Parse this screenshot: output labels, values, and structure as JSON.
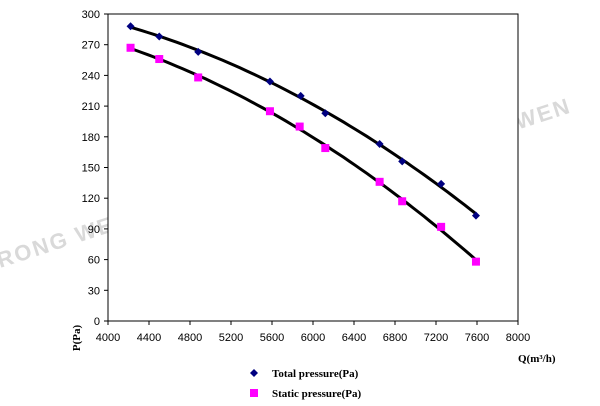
{
  "chart_data": {
    "type": "scatter",
    "title": "",
    "xlabel": "Q(m³/h)",
    "ylabel": "P(Pa)",
    "xlim": [
      4000,
      8000
    ],
    "ylim": [
      0,
      300
    ],
    "x_ticks": [
      4000,
      4400,
      4800,
      5200,
      5600,
      6000,
      6400,
      6800,
      7200,
      7600,
      8000
    ],
    "y_ticks": [
      0,
      30,
      60,
      90,
      120,
      150,
      180,
      210,
      240,
      270,
      300
    ],
    "grid": false,
    "legend_position": "bottom",
    "watermark": "RONG WEN",
    "series": [
      {
        "name": "Total pressure(Pa)",
        "marker": "diamond",
        "color": "#000080",
        "x": [
          4220,
          4500,
          4880,
          5580,
          5880,
          6120,
          6650,
          6870,
          7250,
          7590
        ],
        "y": [
          288,
          278,
          263,
          234,
          220,
          203,
          173,
          156,
          134,
          103
        ]
      },
      {
        "name": "Static pressure(Pa)",
        "marker": "square",
        "color": "#ff00ff",
        "x": [
          4220,
          4500,
          4880,
          5580,
          5870,
          6120,
          6650,
          6870,
          7250,
          7590
        ],
        "y": [
          267,
          256,
          238,
          205,
          190,
          169,
          136,
          117,
          92,
          58
        ]
      }
    ]
  }
}
